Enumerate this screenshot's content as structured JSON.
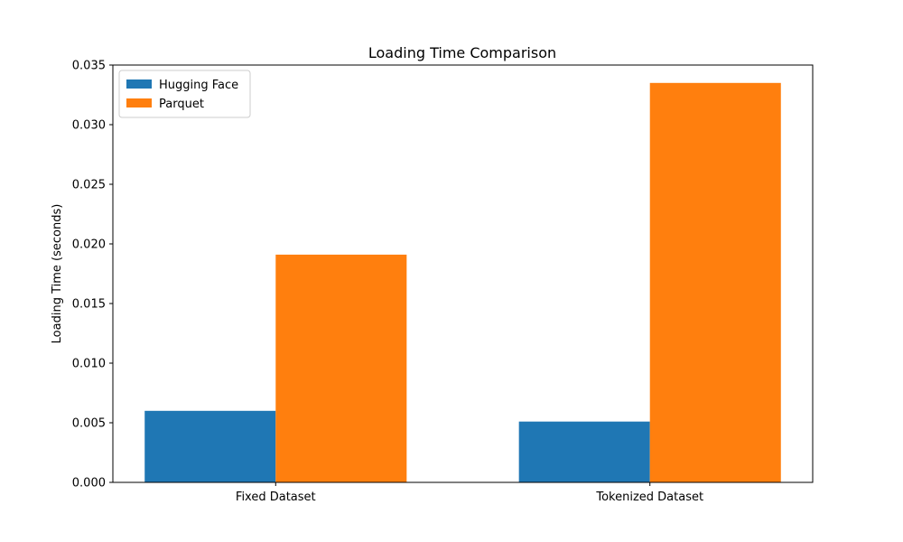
{
  "chart_data": {
    "type": "bar",
    "title": "Loading Time Comparison",
    "xlabel": "",
    "ylabel": "Loading Time (seconds)",
    "categories": [
      "Fixed Dataset",
      "Tokenized Dataset"
    ],
    "series": [
      {
        "name": "Hugging Face",
        "color": "#1f77b4",
        "values": [
          0.006,
          0.0051
        ]
      },
      {
        "name": "Parquet",
        "color": "#ff7f0e",
        "values": [
          0.0191,
          0.0335
        ]
      }
    ],
    "ylim": [
      0,
      0.035
    ],
    "yticks": [
      "0.000",
      "0.005",
      "0.010",
      "0.015",
      "0.020",
      "0.025",
      "0.030",
      "0.035"
    ],
    "grid": false,
    "legend_position": "top-left"
  }
}
